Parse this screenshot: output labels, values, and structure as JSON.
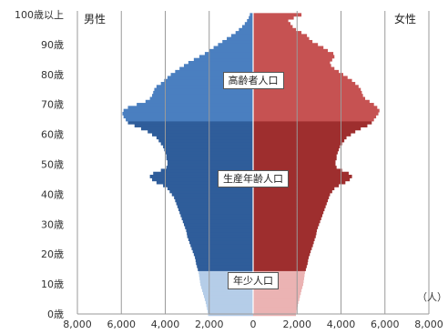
{
  "legend": {
    "male": "男性",
    "female": "女性"
  },
  "unit": "（人）",
  "colors": {
    "male_elderly": "#4A7FC0",
    "male_working": "#2F5D9A",
    "male_youth": "#B5CDE8",
    "female_elderly": "#C65252",
    "female_working": "#9E2E2E",
    "female_youth": "#EBB3B3",
    "grid": "#9A9A9A"
  },
  "chart_data": {
    "type": "bar",
    "orientation": "horizontal-population-pyramid",
    "x_ticks": [
      "8,000",
      "6,000",
      "4,000",
      "2,000",
      "0",
      "2,000",
      "4,000",
      "6,000",
      "8,000"
    ],
    "y_ticks": [
      "0歳",
      "10歳",
      "20歳",
      "30歳",
      "40歳",
      "50歳",
      "60歳",
      "70歳",
      "80歳",
      "90歳",
      "100歳以上"
    ],
    "xlim": [
      -8000,
      8000
    ],
    "ylim": [
      0,
      100
    ],
    "group_labels": [
      {
        "text": "高齢者人口",
        "age": 78
      },
      {
        "text": "生産年齢人口",
        "age": 45
      },
      {
        "text": "年少人口",
        "age": 11
      }
    ],
    "groups": [
      {
        "name": "年少人口",
        "from_age": 0,
        "to_age": 14
      },
      {
        "name": "生産年齢人口",
        "from_age": 15,
        "to_age": 64
      },
      {
        "name": "高齢者人口",
        "from_age": 65,
        "to_age": 100
      }
    ],
    "ages": [
      0,
      1,
      2,
      3,
      4,
      5,
      6,
      7,
      8,
      9,
      10,
      11,
      12,
      13,
      14,
      15,
      16,
      17,
      18,
      19,
      20,
      21,
      22,
      23,
      24,
      25,
      26,
      27,
      28,
      29,
      30,
      31,
      32,
      33,
      34,
      35,
      36,
      37,
      38,
      39,
      40,
      41,
      42,
      43,
      44,
      45,
      46,
      47,
      48,
      49,
      50,
      51,
      52,
      53,
      54,
      55,
      56,
      57,
      58,
      59,
      60,
      61,
      62,
      63,
      64,
      65,
      66,
      67,
      68,
      69,
      70,
      71,
      72,
      73,
      74,
      75,
      76,
      77,
      78,
      79,
      80,
      81,
      82,
      83,
      84,
      85,
      86,
      87,
      88,
      89,
      90,
      91,
      92,
      93,
      94,
      95,
      96,
      97,
      98,
      99,
      100
    ],
    "series": [
      {
        "name": "男性",
        "values": [
          2050,
          2070,
          2100,
          2130,
          2160,
          2200,
          2240,
          2280,
          2320,
          2360,
          2400,
          2420,
          2440,
          2460,
          2480,
          2520,
          2560,
          2600,
          2620,
          2650,
          2700,
          2750,
          2800,
          2850,
          2900,
          2950,
          3000,
          3020,
          3050,
          3100,
          3150,
          3200,
          3250,
          3300,
          3350,
          3400,
          3450,
          3500,
          3550,
          3600,
          3700,
          3800,
          3900,
          4100,
          4400,
          4600,
          4700,
          4550,
          4200,
          3950,
          3900,
          3900,
          3950,
          3950,
          4000,
          4050,
          4100,
          4200,
          4300,
          4400,
          4600,
          4800,
          5100,
          5400,
          5700,
          5800,
          5900,
          5950,
          5900,
          5700,
          5300,
          4900,
          4700,
          4600,
          4550,
          4500,
          4400,
          4200,
          4050,
          3900,
          3750,
          3550,
          3350,
          3150,
          2950,
          2700,
          2450,
          2200,
          2000,
          1800,
          1600,
          1400,
          1200,
          1000,
          800,
          650,
          500,
          380,
          280,
          200,
          150
        ]
      },
      {
        "name": "女性",
        "values": [
          1950,
          1970,
          2000,
          2030,
          2060,
          2100,
          2130,
          2170,
          2200,
          2240,
          2280,
          2300,
          2320,
          2340,
          2360,
          2400,
          2440,
          2480,
          2500,
          2530,
          2580,
          2620,
          2670,
          2720,
          2760,
          2800,
          2850,
          2880,
          2900,
          2950,
          3000,
          3050,
          3100,
          3150,
          3200,
          3250,
          3300,
          3350,
          3400,
          3450,
          3500,
          3600,
          3700,
          3900,
          4200,
          4400,
          4500,
          4350,
          4050,
          3800,
          3750,
          3750,
          3800,
          3800,
          3850,
          3900,
          3950,
          4050,
          4150,
          4250,
          4450,
          4650,
          4900,
          5200,
          5400,
          5500,
          5600,
          5700,
          5750,
          5650,
          5500,
          5300,
          5100,
          5000,
          4950,
          4900,
          4800,
          4650,
          4500,
          4300,
          4100,
          3900,
          3700,
          3550,
          3500,
          3600,
          3700,
          3650,
          3400,
          3200,
          2950,
          2700,
          2550,
          2450,
          2200,
          1950,
          1800,
          1700,
          1600,
          1850,
          2200
        ]
      }
    ]
  }
}
